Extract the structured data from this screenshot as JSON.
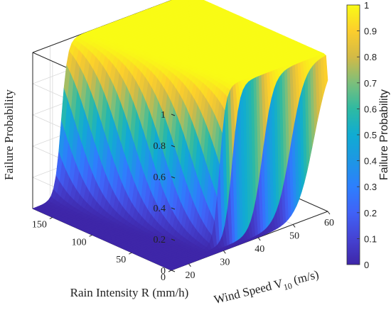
{
  "chart_data": {
    "type": "surface",
    "title": "",
    "xlabel": "Wind Speed V",
    "xlabel_subscript": "10",
    "xlabel_unit": " (m/s)",
    "ylabel": "Rain Intensity R (mm/h)",
    "zlabel": "Failure Probability",
    "colorbar_label": "Failure Probability",
    "colormap": "parula",
    "x_ticks": [
      "20",
      "30",
      "40",
      "50",
      "60"
    ],
    "y_ticks": [
      "0",
      "50",
      "100",
      "150"
    ],
    "z_ticks": [
      "0",
      "0.2",
      "0.4",
      "0.6",
      "0.8",
      "1"
    ],
    "colorbar_ticks": [
      "0",
      "0.1",
      "0.2",
      "0.3",
      "0.4",
      "0.5",
      "0.6",
      "0.7",
      "0.8",
      "0.9",
      "1"
    ],
    "xlim": [
      15,
      60
    ],
    "ylim": [
      0,
      175
    ],
    "zlim": [
      0,
      1
    ],
    "grid": true,
    "sample_surface": {
      "wind_speed": [
        15,
        30,
        40,
        45,
        50,
        55,
        60
      ],
      "rain_intensity": [
        0,
        50,
        100,
        150,
        175
      ],
      "failure_probability_at_rain_0": [
        0,
        0,
        0,
        0,
        0.02,
        0.4,
        0.95
      ],
      "failure_probability_at_rain_175": [
        0,
        0,
        0,
        1,
        1,
        1,
        1
      ]
    }
  }
}
